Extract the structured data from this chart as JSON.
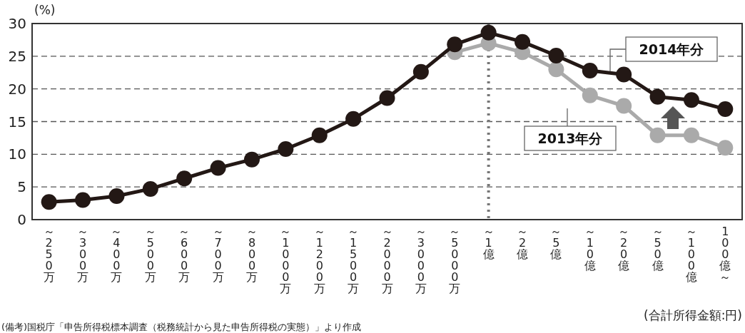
{
  "chart_data": {
    "type": "line",
    "ylabel": "(%)",
    "xlabel": "(合計所得金額:円)",
    "annotations": [
      "(備考)国税庁「申告所得税標本調査（税務統計から見た申告所得税の実態）」より作成"
    ],
    "categories": [
      "～250万",
      "～300万",
      "～400万",
      "～500万",
      "～600万",
      "～700万",
      "～800万",
      "～1000万",
      "～1200万",
      "～1500万",
      "～2000万",
      "～3000万",
      "～5000万",
      "～1億",
      "～2億",
      "～5億",
      "～10億",
      "～20億",
      "～50億",
      "～100億",
      "100億～"
    ],
    "series": [
      {
        "name": "2013年分",
        "color": "#aaaaaa",
        "values": [
          null,
          null,
          null,
          null,
          null,
          null,
          null,
          null,
          null,
          null,
          null,
          null,
          25.6,
          27.0,
          25.6,
          23.0,
          19.0,
          17.4,
          12.9,
          12.9,
          11.0
        ]
      },
      {
        "name": "2014年分",
        "color": "#231815",
        "values": [
          2.7,
          3.0,
          3.6,
          4.7,
          6.3,
          7.9,
          9.2,
          10.8,
          12.9,
          15.4,
          18.6,
          22.6,
          26.8,
          28.6,
          27.2,
          25.1,
          22.8,
          22.2,
          18.8,
          18.3,
          16.9
        ]
      }
    ],
    "ylim": [
      0,
      30
    ],
    "yticks": [
      0,
      5,
      10,
      15,
      20,
      25,
      30
    ],
    "grid": "y",
    "legend": false,
    "marker": "circle",
    "line_style": "solid",
    "ref_lines": [
      {
        "axis": "x",
        "value": "～1億",
        "line_style": "dotted",
        "color": "#777777"
      }
    ]
  }
}
